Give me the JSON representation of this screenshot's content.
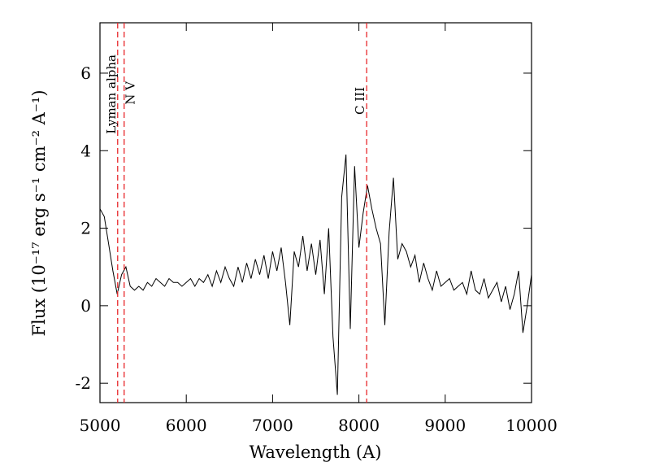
{
  "chart_data": {
    "type": "line",
    "xlabel": "Wavelength (A)",
    "ylabel": "Flux (10⁻¹⁷ erg s⁻¹ cm⁻² A⁻¹)",
    "xlim": [
      5000,
      10000
    ],
    "ylim": [
      -2.5,
      7.3
    ],
    "xticks": [
      5000,
      6000,
      7000,
      8000,
      9000,
      10000
    ],
    "yticks": [
      -2,
      0,
      2,
      4,
      6
    ],
    "series": [
      {
        "color": "#000000",
        "x": [
          5000,
          5050,
          5100,
          5150,
          5200,
          5250,
          5300,
          5350,
          5400,
          5450,
          5500,
          5550,
          5600,
          5650,
          5700,
          5750,
          5800,
          5850,
          5900,
          5950,
          6000,
          6050,
          6100,
          6150,
          6200,
          6250,
          6300,
          6350,
          6400,
          6450,
          6500,
          6550,
          6600,
          6650,
          6700,
          6750,
          6800,
          6850,
          6900,
          6950,
          7000,
          7050,
          7100,
          7150,
          7200,
          7250,
          7300,
          7350,
          7400,
          7450,
          7500,
          7550,
          7600,
          7650,
          7700,
          7750,
          7800,
          7850,
          7900,
          7950,
          8000,
          8050,
          8100,
          8150,
          8200,
          8250,
          8300,
          8350,
          8400,
          8450,
          8500,
          8550,
          8600,
          8650,
          8700,
          8750,
          8800,
          8850,
          8900,
          8950,
          9000,
          9050,
          9100,
          9150,
          9200,
          9250,
          9300,
          9350,
          9400,
          9450,
          9500,
          9550,
          9600,
          9650,
          9700,
          9750,
          9800,
          9850,
          9900,
          9950,
          10000
        ],
        "values": [
          2.5,
          2.3,
          1.6,
          0.9,
          0.3,
          0.8,
          1.0,
          0.5,
          0.4,
          0.5,
          0.4,
          0.6,
          0.5,
          0.7,
          0.6,
          0.5,
          0.7,
          0.6,
          0.6,
          0.5,
          0.6,
          0.7,
          0.5,
          0.7,
          0.6,
          0.8,
          0.5,
          0.9,
          0.6,
          1.0,
          0.7,
          0.5,
          1.0,
          0.6,
          1.1,
          0.7,
          1.2,
          0.8,
          1.3,
          0.7,
          1.4,
          0.9,
          1.5,
          0.6,
          -0.5,
          1.4,
          1.0,
          1.8,
          0.9,
          1.6,
          0.8,
          1.7,
          0.3,
          2.0,
          -0.8,
          -2.3,
          2.8,
          3.9,
          -0.6,
          3.6,
          1.5,
          2.4,
          3.1,
          2.5,
          2.0,
          1.6,
          -0.5,
          1.9,
          3.3,
          1.2,
          1.6,
          1.4,
          1.0,
          1.3,
          0.6,
          1.1,
          0.7,
          0.4,
          0.9,
          0.5,
          0.6,
          0.7,
          0.4,
          0.5,
          0.6,
          0.3,
          0.9,
          0.4,
          0.3,
          0.7,
          0.2,
          0.4,
          0.6,
          0.1,
          0.5,
          -0.1,
          0.3,
          0.9,
          -0.7,
          0.0,
          0.8
        ]
      }
    ],
    "lines": [
      {
        "x": 5205,
        "label": "Lyman alpha",
        "color": "#e8262a"
      },
      {
        "x": 5280,
        "label": "N V",
        "color": "#e8262a"
      },
      {
        "x": 8090,
        "label": "C III",
        "color": "#e8262a"
      }
    ]
  }
}
